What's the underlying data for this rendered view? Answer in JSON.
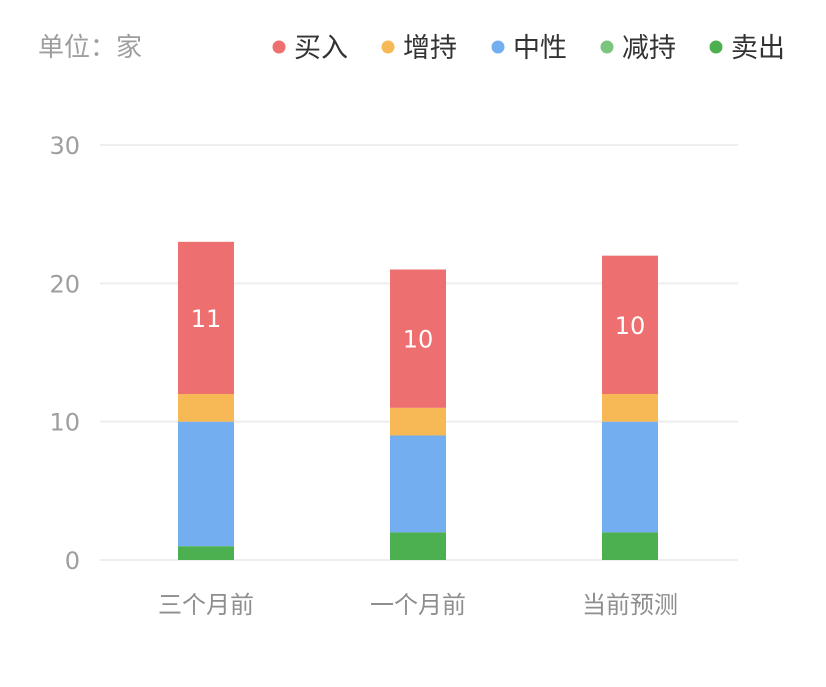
{
  "unit_label": "单位：家",
  "chart_data": {
    "type": "bar",
    "stacked": true,
    "categories": [
      "三个月前",
      "一个月前",
      "当前预测"
    ],
    "series": [
      {
        "name": "卖出",
        "values": [
          1,
          2,
          2
        ],
        "color": "#4caf50"
      },
      {
        "name": "减持",
        "values": [
          0,
          0,
          0
        ],
        "color": "#7bc67e"
      },
      {
        "name": "中性",
        "values": [
          9,
          7,
          8
        ],
        "color": "#73aef0"
      },
      {
        "name": "增持",
        "values": [
          2,
          2,
          2
        ],
        "color": "#f7b955"
      },
      {
        "name": "买入",
        "values": [
          11,
          10,
          10
        ],
        "color": "#ee6f6f"
      }
    ],
    "legend_order": [
      "买入",
      "增持",
      "中性",
      "减持",
      "卖出"
    ],
    "legend_position": "top-right",
    "data_labels_series": "买入",
    "ylim": [
      0,
      30
    ],
    "yticks": [
      0,
      10,
      20,
      30
    ],
    "grid": true,
    "title": "",
    "xlabel": "",
    "ylabel": ""
  }
}
